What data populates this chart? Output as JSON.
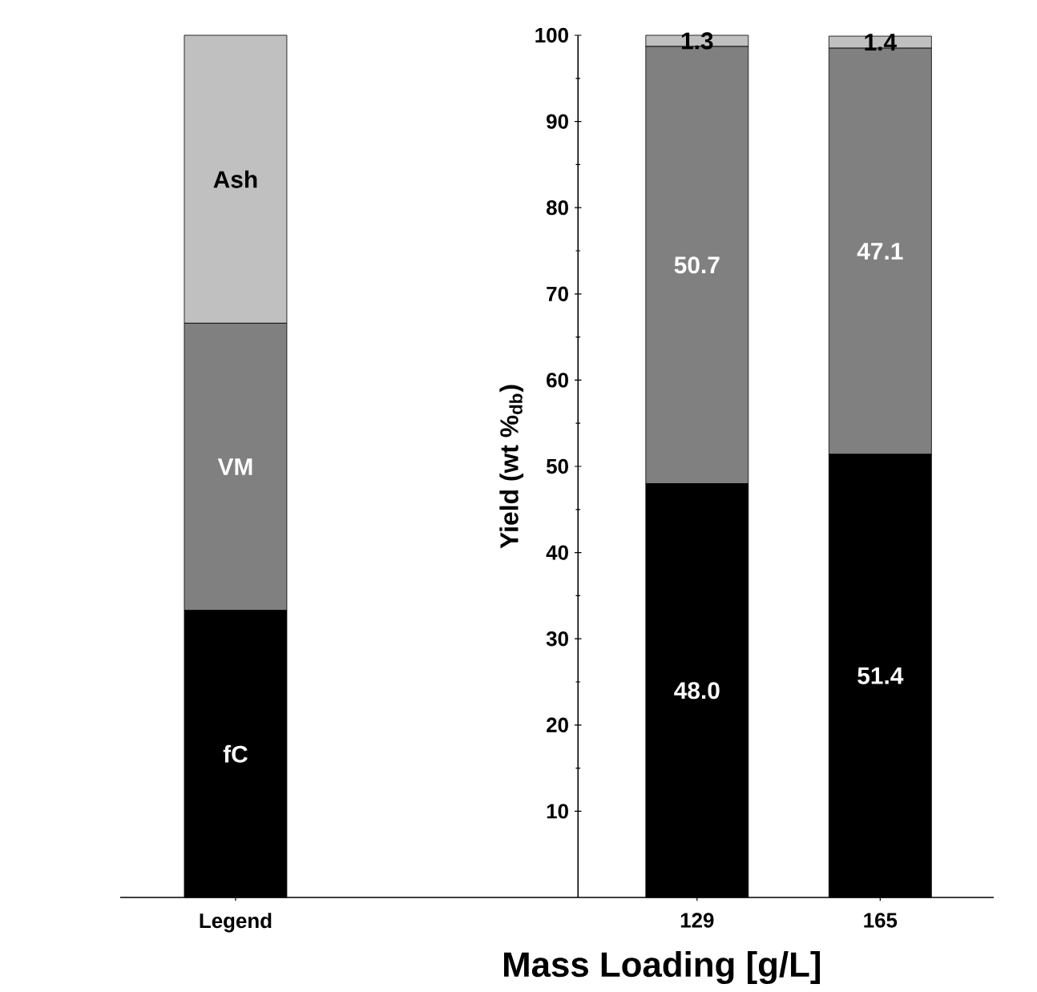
{
  "chart_data": {
    "type": "bar",
    "stacked": true,
    "xlabel": "Mass Loading [g/L]",
    "ylabel": "Yield (wt %$_{db}$)",
    "categories": [
      "Legend",
      "129",
      "165"
    ],
    "series": [
      {
        "name": "fC",
        "color": "#000000",
        "values": [
          33.3,
          48.0,
          51.4
        ],
        "value_labels": [
          null,
          "48.0",
          "51.4"
        ]
      },
      {
        "name": "VM",
        "color": "#808080",
        "values": [
          33.3,
          50.7,
          47.1
        ],
        "value_labels": [
          null,
          "50.7",
          "47.1"
        ]
      },
      {
        "name": "Ash",
        "color": "#c0c0c0",
        "values": [
          33.4,
          1.3,
          1.4
        ],
        "value_labels": [
          null,
          "1.3",
          "1.4"
        ]
      }
    ],
    "ylim": [
      0,
      100
    ],
    "yticks": [
      10,
      20,
      30,
      40,
      50,
      60,
      70,
      80,
      90,
      100
    ]
  }
}
